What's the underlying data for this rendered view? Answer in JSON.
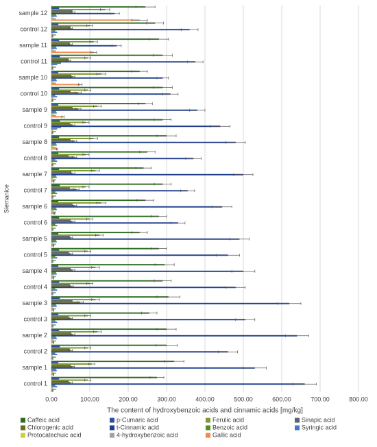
{
  "chart_data": {
    "type": "bar",
    "orientation": "horizontal",
    "x_label": "The content of hydroxybenzoic acids and cinnamic acids [mg/kg]",
    "y_label": "Siemanice",
    "categories": [
      "control 1",
      "sample 1",
      "control 2",
      "sample 2",
      "control 3",
      "sample 3",
      "control 4",
      "sample 4",
      "control 5",
      "sample 5",
      "control 6",
      "sample 6",
      "control 7",
      "sample 7",
      "control 8",
      "sample 8",
      "control 9",
      "sample 9",
      "control 10",
      "sample 10",
      "control 11",
      "sample 11",
      "control 12",
      "sample 12"
    ],
    "xlim": [
      0,
      800
    ],
    "xticks": [
      {
        "value": 0,
        "label": "0.00"
      },
      {
        "value": 100,
        "label": "100.00"
      },
      {
        "value": 200,
        "label": "200.00"
      },
      {
        "value": 300,
        "label": "300.00"
      },
      {
        "value": 400,
        "label": "400.00"
      },
      {
        "value": 500,
        "label": "500.00"
      },
      {
        "value": 600,
        "label": "600.00"
      },
      {
        "value": 700,
        "label": "700.00"
      },
      {
        "value": 800,
        "label": "800.00"
      }
    ],
    "grid": true,
    "legend": "bottom",
    "series": [
      {
        "name": "Caffeic acid",
        "color": "#2e6b1f",
        "values": [
          275,
          320,
          300,
          300,
          255,
          305,
          290,
          295,
          280,
          230,
          280,
          245,
          290,
          240,
          250,
          300,
          290,
          245,
          290,
          230,
          290,
          280,
          270,
          245
        ],
        "errors": [
          18,
          25,
          28,
          25,
          20,
          30,
          22,
          25,
          20,
          20,
          20,
          22,
          22,
          20,
          20,
          25,
          22,
          18,
          25,
          20,
          25,
          25,
          22,
          25
        ]
      },
      {
        "name": "p-Cumaric acid",
        "color": "#2f4f9a",
        "values": [
          20,
          18,
          22,
          20,
          18,
          22,
          20,
          18,
          20,
          18,
          20,
          18,
          22,
          20,
          18,
          20,
          22,
          18,
          20,
          18,
          22,
          20,
          18,
          20
        ]
      },
      {
        "name": "Ferulic acid",
        "color": "#7d9a2a",
        "values": [
          95,
          105,
          95,
          120,
          95,
          115,
          100,
          115,
          95,
          125,
          100,
          130,
          90,
          115,
          90,
          110,
          90,
          120,
          95,
          130,
          95,
          110,
          100,
          140
        ],
        "errors": [
          8,
          8,
          8,
          10,
          8,
          10,
          8,
          10,
          8,
          10,
          8,
          12,
          8,
          10,
          8,
          10,
          8,
          10,
          8,
          12,
          8,
          10,
          8,
          12
        ]
      },
      {
        "name": "Sinapic acid",
        "color": "#5a6270",
        "values": [
          45,
          50,
          48,
          52,
          45,
          55,
          48,
          50,
          45,
          48,
          50,
          55,
          48,
          52,
          45,
          50,
          48,
          55,
          50,
          52,
          45,
          48,
          50,
          55
        ]
      },
      {
        "name": "Chlorogenic acid",
        "color": "#6b6b2a",
        "values": [
          50,
          55,
          50,
          55,
          50,
          75,
          52,
          55,
          50,
          50,
          55,
          60,
          65,
          55,
          60,
          60,
          55,
          70,
          70,
          55,
          45,
          50,
          50,
          55
        ],
        "errors": [
          5,
          5,
          5,
          6,
          5,
          8,
          5,
          6,
          5,
          5,
          6,
          6,
          7,
          6,
          6,
          6,
          6,
          7,
          8,
          6,
          5,
          5,
          5,
          6
        ]
      },
      {
        "name": "t-Cinnamic acid",
        "color": "#1f3d8a",
        "values": [
          660,
          530,
          460,
          640,
          505,
          620,
          480,
          500,
          460,
          490,
          330,
          445,
          355,
          500,
          370,
          480,
          440,
          380,
          310,
          290,
          375,
          170,
          360,
          165
        ],
        "errors": [
          30,
          30,
          25,
          30,
          25,
          30,
          25,
          30,
          30,
          25,
          18,
          25,
          18,
          25,
          20,
          25,
          25,
          20,
          20,
          15,
          20,
          12,
          22,
          12
        ]
      },
      {
        "name": "Benzoic acid",
        "color": "#4f8f2f",
        "values": [
          10,
          12,
          10,
          12,
          10,
          12,
          10,
          12,
          10,
          12,
          10,
          12,
          10,
          12,
          10,
          12,
          25,
          12,
          10,
          12,
          25,
          12,
          10,
          12
        ]
      },
      {
        "name": "Syringic acid",
        "color": "#4a78c8",
        "values": [
          15,
          14,
          15,
          14,
          15,
          14,
          15,
          14,
          15,
          14,
          15,
          14,
          15,
          14,
          15,
          14,
          15,
          14,
          15,
          14,
          15,
          14,
          15,
          14
        ]
      },
      {
        "name": "Protocatechuic acid",
        "color": "#c8d23c",
        "values": [
          5,
          5,
          5,
          5,
          5,
          5,
          5,
          5,
          5,
          5,
          5,
          5,
          5,
          5,
          5,
          5,
          5,
          5,
          5,
          5,
          5,
          5,
          5,
          5
        ]
      },
      {
        "name": "4-hydroxybenzoic acid",
        "color": "#a0a0a0",
        "values": [
          12,
          12,
          12,
          12,
          12,
          12,
          12,
          12,
          12,
          12,
          12,
          12,
          12,
          12,
          12,
          12,
          12,
          12,
          12,
          12,
          12,
          12,
          12,
          12
        ]
      },
      {
        "name": "Gallic acid",
        "color": "#f08a4b",
        "values": [
          3,
          5,
          3,
          5,
          3,
          5,
          3,
          5,
          3,
          5,
          3,
          8,
          3,
          6,
          3,
          15,
          3,
          30,
          3,
          75,
          3,
          110,
          3,
          230
        ],
        "errors": [
          1,
          1,
          1,
          1,
          1,
          1,
          1,
          1,
          1,
          1,
          1,
          1,
          1,
          1,
          1,
          2,
          1,
          3,
          1,
          5,
          1,
          8,
          1,
          20
        ]
      }
    ]
  }
}
